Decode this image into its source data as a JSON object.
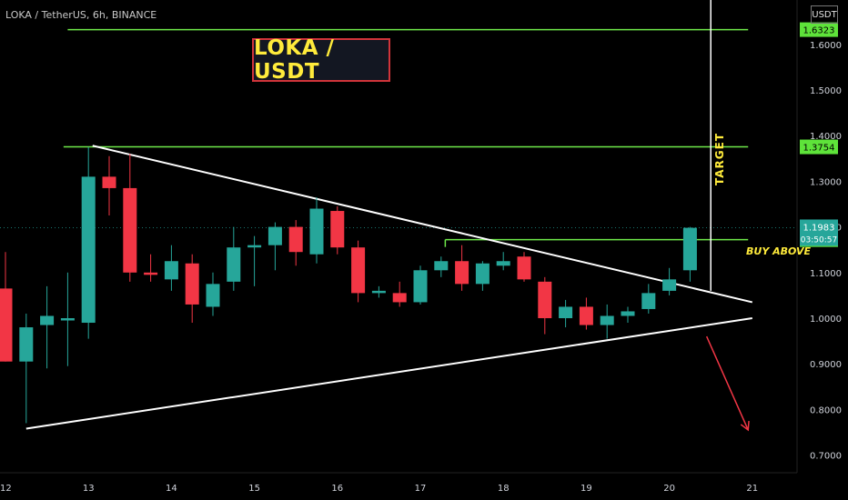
{
  "header": {
    "symbol_line": "LOKA / TetherUS, 6h, BINANCE"
  },
  "title_box": {
    "text": "LOKA / USDT"
  },
  "price_axis": {
    "unit": "USDT"
  },
  "colors": {
    "up": "#26a69a",
    "down": "#f23645",
    "level_line": "#6ee84a",
    "trendline": "#ffffff",
    "target_label": "#ffeb3b",
    "arrow": "#f23645",
    "label_green_bg": "#5ee33a"
  },
  "chart_data": {
    "type": "candlestick",
    "y_ticks": [
      "1.6000",
      "1.5000",
      "1.4000",
      "1.3000",
      "1.2000",
      "1.1000",
      "1.0000",
      "0.9000",
      "0.8000",
      "0.7000"
    ],
    "x_ticks": [
      {
        "day": 12,
        "label": "12"
      },
      {
        "day": 13,
        "label": "13"
      },
      {
        "day": 14,
        "label": "14"
      },
      {
        "day": 15,
        "label": "15"
      },
      {
        "day": 16,
        "label": "16"
      },
      {
        "day": 17,
        "label": "17"
      },
      {
        "day": 18,
        "label": "18"
      },
      {
        "day": 19,
        "label": "19"
      },
      {
        "day": 20,
        "label": "20"
      },
      {
        "day": 21,
        "label": "21"
      }
    ],
    "candles": [
      {
        "t": 12.0,
        "o": 1.065,
        "h": 1.145,
        "l": 0.905,
        "c": 0.905
      },
      {
        "t": 12.25,
        "o": 0.905,
        "h": 1.01,
        "l": 0.77,
        "c": 0.98
      },
      {
        "t": 12.5,
        "o": 0.985,
        "h": 1.07,
        "l": 0.89,
        "c": 1.005
      },
      {
        "t": 12.75,
        "o": 0.995,
        "h": 1.1,
        "l": 0.895,
        "c": 1.0
      },
      {
        "t": 13.0,
        "o": 0.99,
        "h": 1.375,
        "l": 0.955,
        "c": 1.31
      },
      {
        "t": 13.25,
        "o": 1.31,
        "h": 1.355,
        "l": 1.225,
        "c": 1.285
      },
      {
        "t": 13.5,
        "o": 1.285,
        "h": 1.36,
        "l": 1.08,
        "c": 1.1
      },
      {
        "t": 13.75,
        "o": 1.1,
        "h": 1.14,
        "l": 1.08,
        "c": 1.095
      },
      {
        "t": 14.0,
        "o": 1.085,
        "h": 1.16,
        "l": 1.06,
        "c": 1.125
      },
      {
        "t": 14.25,
        "o": 1.12,
        "h": 1.14,
        "l": 0.99,
        "c": 1.03
      },
      {
        "t": 14.5,
        "o": 1.025,
        "h": 1.1,
        "l": 1.005,
        "c": 1.075
      },
      {
        "t": 14.75,
        "o": 1.08,
        "h": 1.2,
        "l": 1.06,
        "c": 1.155
      },
      {
        "t": 15.0,
        "o": 1.155,
        "h": 1.18,
        "l": 1.07,
        "c": 1.16
      },
      {
        "t": 15.25,
        "o": 1.16,
        "h": 1.21,
        "l": 1.105,
        "c": 1.2
      },
      {
        "t": 15.5,
        "o": 1.2,
        "h": 1.215,
        "l": 1.115,
        "c": 1.145
      },
      {
        "t": 15.75,
        "o": 1.14,
        "h": 1.265,
        "l": 1.12,
        "c": 1.24
      },
      {
        "t": 16.0,
        "o": 1.235,
        "h": 1.245,
        "l": 1.14,
        "c": 1.155
      },
      {
        "t": 16.25,
        "o": 1.155,
        "h": 1.17,
        "l": 1.035,
        "c": 1.055
      },
      {
        "t": 16.5,
        "o": 1.055,
        "h": 1.07,
        "l": 1.045,
        "c": 1.06
      },
      {
        "t": 16.75,
        "o": 1.055,
        "h": 1.08,
        "l": 1.025,
        "c": 1.035
      },
      {
        "t": 17.0,
        "o": 1.035,
        "h": 1.115,
        "l": 1.03,
        "c": 1.105
      },
      {
        "t": 17.25,
        "o": 1.105,
        "h": 1.135,
        "l": 1.09,
        "c": 1.125
      },
      {
        "t": 17.5,
        "o": 1.125,
        "h": 1.16,
        "l": 1.06,
        "c": 1.075
      },
      {
        "t": 17.75,
        "o": 1.075,
        "h": 1.125,
        "l": 1.06,
        "c": 1.12
      },
      {
        "t": 18.0,
        "o": 1.115,
        "h": 1.145,
        "l": 1.105,
        "c": 1.125
      },
      {
        "t": 18.25,
        "o": 1.135,
        "h": 1.145,
        "l": 1.08,
        "c": 1.085
      },
      {
        "t": 18.5,
        "o": 1.08,
        "h": 1.09,
        "l": 0.965,
        "c": 1.0
      },
      {
        "t": 18.75,
        "o": 1.0,
        "h": 1.04,
        "l": 0.98,
        "c": 1.025
      },
      {
        "t": 19.0,
        "o": 1.025,
        "h": 1.045,
        "l": 0.975,
        "c": 0.985
      },
      {
        "t": 19.25,
        "o": 0.985,
        "h": 1.03,
        "l": 0.955,
        "c": 1.005
      },
      {
        "t": 19.5,
        "o": 1.005,
        "h": 1.025,
        "l": 0.99,
        "c": 1.015
      },
      {
        "t": 19.75,
        "o": 1.02,
        "h": 1.075,
        "l": 1.01,
        "c": 1.055
      },
      {
        "t": 20.0,
        "o": 1.06,
        "h": 1.11,
        "l": 1.05,
        "c": 1.085
      },
      {
        "t": 20.25,
        "o": 1.105,
        "h": 1.2,
        "l": 1.08,
        "c": 1.198
      }
    ],
    "levels": [
      {
        "name": "top_level",
        "price": 1.6323,
        "label": "1.6323",
        "t_start": 12.75,
        "t_end": 20.95
      },
      {
        "name": "mid_level",
        "price": 1.3754,
        "label": "1.3754",
        "t_start": 12.7,
        "t_end": 20.95
      },
      {
        "name": "buy_level",
        "price": 1.172,
        "label": "1.1720",
        "t_start": 17.3,
        "t_end": 20.95
      }
    ],
    "current_price": {
      "price": 1.1983,
      "label": "1.1983",
      "countdown": "03:50:57"
    },
    "trendlines": [
      {
        "name": "upper_trendline",
        "t1": 13.05,
        "p1": 1.378,
        "t2": 21.0,
        "p2": 1.035
      },
      {
        "name": "lower_trendline",
        "t1": 12.25,
        "p1": 0.758,
        "t2": 21.0,
        "p2": 1.0
      }
    ],
    "target": {
      "label": "TARGET",
      "t": 20.5,
      "p_from": 1.06,
      "p_to": 1.785
    },
    "buy_above": {
      "label": "BUY ABOVE"
    },
    "arrow": {
      "t1": 20.45,
      "p1": 0.96,
      "t2": 20.95,
      "p2": 0.755
    }
  }
}
